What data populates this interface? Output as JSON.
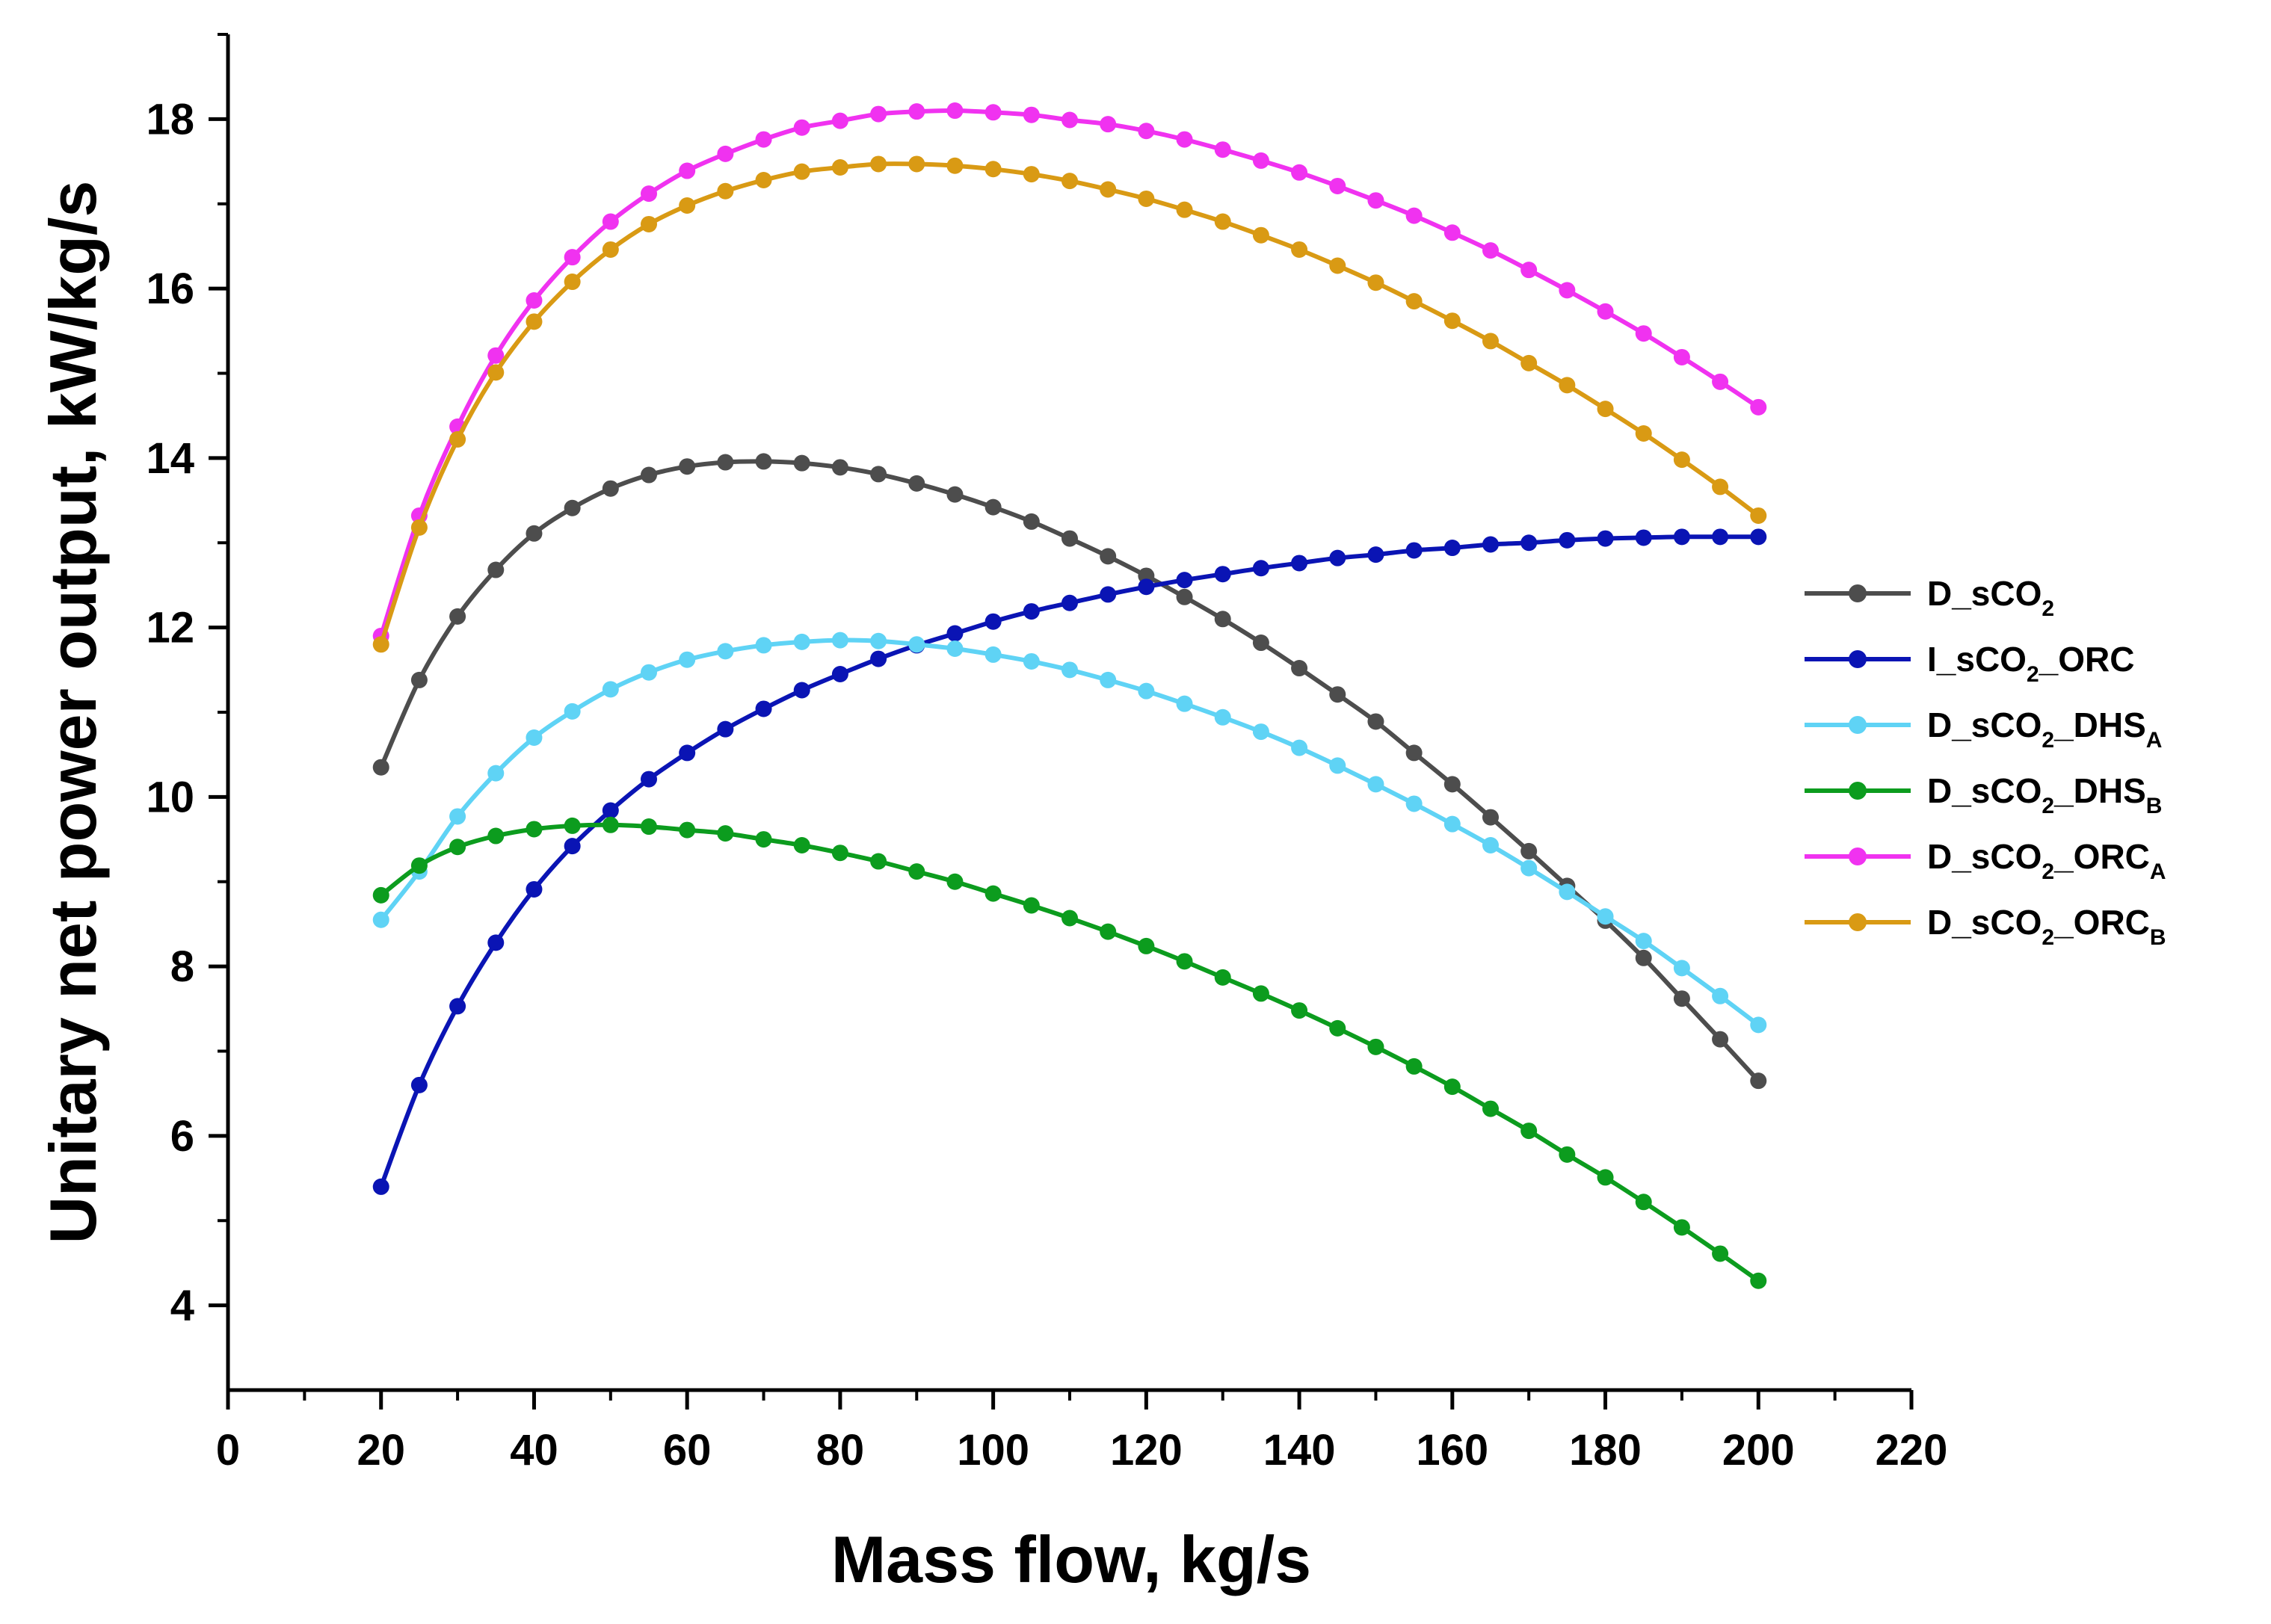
{
  "chart_data": {
    "type": "line",
    "title": "",
    "xlabel": "Mass flow, kg/s",
    "ylabel": "Unitary net power output, kW/kg/s",
    "xlim": [
      0,
      220
    ],
    "ylim": [
      3,
      19
    ],
    "xticks": [
      0,
      20,
      40,
      60,
      80,
      100,
      120,
      140,
      160,
      180,
      200,
      220
    ],
    "yticks": [
      4,
      6,
      8,
      10,
      12,
      14,
      16,
      18
    ],
    "grid": false,
    "legend_position": "right",
    "x": [
      20,
      25,
      30,
      35,
      40,
      45,
      50,
      55,
      60,
      65,
      70,
      75,
      80,
      85,
      90,
      95,
      100,
      105,
      110,
      115,
      120,
      125,
      130,
      135,
      140,
      145,
      150,
      155,
      160,
      165,
      170,
      175,
      180,
      185,
      190,
      195,
      200
    ],
    "series": [
      {
        "name": "D_sCO2",
        "label_base": "D_sCO",
        "label_sub": "2",
        "label_tail": "",
        "label_tail_sub": "",
        "color": "#4d4d4d",
        "values": [
          10.35,
          11.38,
          12.13,
          12.68,
          13.11,
          13.41,
          13.64,
          13.8,
          13.9,
          13.95,
          13.96,
          13.94,
          13.89,
          13.81,
          13.7,
          13.57,
          13.42,
          13.25,
          13.05,
          12.84,
          12.61,
          12.36,
          12.1,
          11.82,
          11.52,
          11.21,
          10.89,
          10.52,
          10.15,
          9.76,
          9.36,
          8.95,
          8.54,
          8.1,
          7.62,
          7.14,
          6.65
        ]
      },
      {
        "name": "I_sCO2_ORC",
        "label_base": "I_sCO",
        "label_sub": "2",
        "label_tail": "_ORC",
        "label_tail_sub": "",
        "color": "#0a14b4",
        "values": [
          5.4,
          6.6,
          7.53,
          8.28,
          8.91,
          9.42,
          9.84,
          10.21,
          10.52,
          10.8,
          11.04,
          11.26,
          11.45,
          11.63,
          11.79,
          11.93,
          12.07,
          12.19,
          12.29,
          12.39,
          12.48,
          12.56,
          12.63,
          12.7,
          12.76,
          12.82,
          12.86,
          12.91,
          12.94,
          12.98,
          13.0,
          13.03,
          13.05,
          13.06,
          13.07,
          13.07,
          13.07
        ]
      },
      {
        "name": "D_sCO2_DHSA",
        "label_base": "D_sCO",
        "label_sub": "2",
        "label_tail": "_DHS",
        "label_tail_sub": "A",
        "color": "#5fd3f5",
        "values": [
          8.55,
          9.12,
          9.77,
          10.28,
          10.7,
          11.01,
          11.27,
          11.47,
          11.62,
          11.72,
          11.79,
          11.83,
          11.85,
          11.84,
          11.8,
          11.75,
          11.68,
          11.6,
          11.5,
          11.38,
          11.25,
          11.1,
          10.94,
          10.77,
          10.58,
          10.37,
          10.15,
          9.92,
          9.68,
          9.43,
          9.16,
          8.88,
          8.59,
          8.3,
          7.98,
          7.65,
          7.31
        ]
      },
      {
        "name": "D_sCO2_DHSB",
        "label_base": "D_sCO",
        "label_sub": "2",
        "label_tail": "_DHS",
        "label_tail_sub": "B",
        "color": "#0c9c1e",
        "values": [
          8.84,
          9.19,
          9.41,
          9.54,
          9.62,
          9.66,
          9.67,
          9.65,
          9.61,
          9.57,
          9.5,
          9.43,
          9.34,
          9.24,
          9.12,
          9.0,
          8.86,
          8.72,
          8.57,
          8.41,
          8.24,
          8.06,
          7.87,
          7.68,
          7.48,
          7.27,
          7.05,
          6.82,
          6.58,
          6.32,
          6.06,
          5.78,
          5.51,
          5.22,
          4.92,
          4.61,
          4.29
        ]
      },
      {
        "name": "D_sCO2_ORCA",
        "label_base": "D_sCO",
        "label_sub": "2",
        "label_tail": "_ORC",
        "label_tail_sub": "A",
        "color": "#f032f0",
        "values": [
          11.9,
          13.32,
          14.37,
          15.21,
          15.86,
          16.37,
          16.79,
          17.12,
          17.39,
          17.59,
          17.76,
          17.9,
          17.98,
          18.06,
          18.09,
          18.1,
          18.08,
          18.05,
          17.99,
          17.94,
          17.86,
          17.76,
          17.64,
          17.51,
          17.37,
          17.21,
          17.04,
          16.86,
          16.66,
          16.45,
          16.22,
          15.98,
          15.73,
          15.47,
          15.19,
          14.9,
          14.6
        ]
      },
      {
        "name": "D_sCO2_ORCB",
        "label_base": "D_sCO",
        "label_sub": "2",
        "label_tail": "_ORC",
        "label_tail_sub": "B",
        "color": "#d99a14",
        "values": [
          11.8,
          13.18,
          14.22,
          15.01,
          15.61,
          16.08,
          16.46,
          16.76,
          16.98,
          17.15,
          17.28,
          17.38,
          17.43,
          17.47,
          17.47,
          17.45,
          17.41,
          17.35,
          17.27,
          17.17,
          17.06,
          16.93,
          16.79,
          16.63,
          16.46,
          16.27,
          16.07,
          15.85,
          15.62,
          15.38,
          15.12,
          14.86,
          14.58,
          14.29,
          13.98,
          13.66,
          13.32
        ]
      }
    ]
  }
}
